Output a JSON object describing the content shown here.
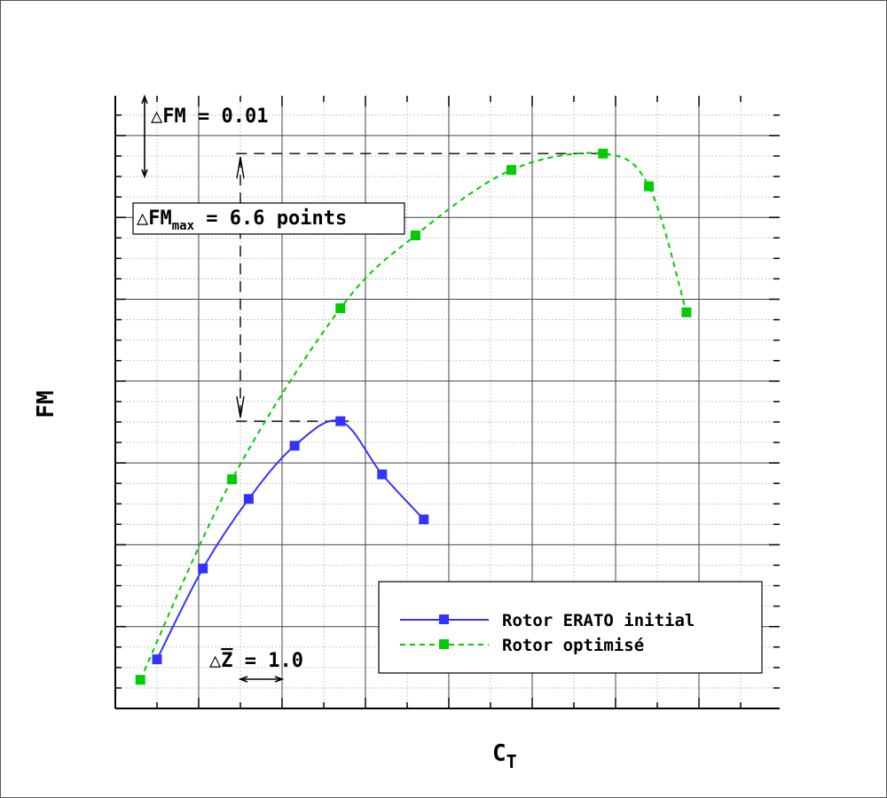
{
  "chart_data": {
    "type": "line",
    "xlabel": "C",
    "xlabel_sub": "T",
    "ylabel": "FM",
    "xlim": [
      0,
      8
    ],
    "ylim": [
      0,
      0.075
    ],
    "grid": true,
    "legend_position": "bottom-right",
    "series": [
      {
        "name": "Rotor ERATO initial",
        "color": "#3333ff",
        "line_style": "solid",
        "marker": "square",
        "x": [
          0.5,
          1.05,
          1.6,
          2.15,
          2.7,
          3.2,
          3.7
        ],
        "y": [
          0.006,
          0.0171,
          0.0256,
          0.0321,
          0.0351,
          0.0286,
          0.0231
        ]
      },
      {
        "name": "Rotor optimisé",
        "color": "#00cc00",
        "line_style": "dashed",
        "marker": "square",
        "x": [
          0.3,
          1.4,
          2.7,
          3.6,
          4.75,
          5.85,
          6.4,
          6.85
        ],
        "y": [
          0.0035,
          0.028,
          0.0489,
          0.0578,
          0.0658,
          0.0678,
          0.0638,
          0.0484
        ]
      }
    ],
    "annotations": {
      "dfm_scale": {
        "prefix": "△FM",
        "text": " = 0.01"
      },
      "dfm_max": {
        "prefix": "△FM",
        "sub": "max",
        "text": " = 6.6 points"
      },
      "dz_scale": {
        "prefix": "△",
        "var": "Z",
        "text": " = 1.0"
      }
    }
  }
}
